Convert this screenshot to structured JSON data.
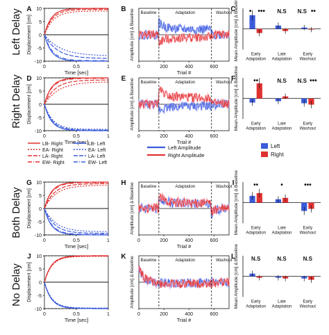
{
  "figure": {
    "rows": [
      {
        "row_label": "Left Delay"
      },
      {
        "row_label": "Right Delay"
      },
      {
        "row_label": "Both Delay"
      },
      {
        "row_label": "No Delay"
      }
    ],
    "legend": {
      "displacement_entries": [
        "LB- Right",
        "EA- Right",
        "LA- Right",
        "EW- Right",
        "LB- Left",
        "EA- Left",
        "LA- Left",
        "EW- Left"
      ],
      "amplitude_entries": [
        "Left Amplitude",
        "Right Amplitude"
      ],
      "bar_entries": [
        "Left",
        "Right"
      ]
    },
    "colors": {
      "left": "#3b5bdb",
      "right": "#e03131",
      "left_light": "#aab4ff",
      "right_light": "#ffa8b4",
      "black": "#111111"
    }
  },
  "chart_data": [
    {
      "panel": "A",
      "type": "line",
      "xlabel": "Time [sec]",
      "ylabel": "Displacement [cm]",
      "xlim": [
        0,
        1
      ],
      "ylim": [
        -10,
        10
      ],
      "xticks": [
        "0",
        "0.5",
        "1"
      ],
      "yticks": [
        "10",
        "5",
        "0",
        "-5",
        "-10"
      ],
      "series": [
        {
          "name": "LB- Right",
          "final": 10,
          "rate": 9
        },
        {
          "name": "EA- Right",
          "final": 9,
          "rate": 7
        },
        {
          "name": "LA- Right",
          "final": 9.6,
          "rate": 8
        },
        {
          "name": "EW- Right",
          "final": 9.9,
          "rate": 9.5
        },
        {
          "name": "LB- Left",
          "final": -10,
          "rate": 9
        },
        {
          "name": "EA- Left",
          "final": -8,
          "rate": 4
        },
        {
          "name": "LA- Left",
          "final": -9,
          "rate": 5
        },
        {
          "name": "EW- Left",
          "final": -9.8,
          "rate": 8
        }
      ]
    },
    {
      "panel": "B",
      "type": "line",
      "xlabel": "Trial #",
      "ylabel": "Amplitude [cm] Δ Baseline",
      "xlim": [
        0,
        720
      ],
      "ylim": [
        -4,
        4
      ],
      "xticks": [
        "0",
        "200",
        "400",
        "600"
      ],
      "phases": [
        "Baseline",
        "Adaptation",
        "Washout"
      ],
      "phase_bounds": [
        160,
        580
      ],
      "series": [
        {
          "name": "Left Amplitude",
          "baseline": 0,
          "adapt_start": 1.8,
          "adapt_end": 0.8,
          "washout_start": 0
        },
        {
          "name": "Right Amplitude",
          "baseline": 0,
          "adapt_start": -1.2,
          "adapt_end": -0.4,
          "washout_start": 0
        }
      ]
    },
    {
      "panel": "C",
      "type": "bar",
      "ylabel": "Mean Amplitude [cm] Δ Baseline",
      "categories": [
        "Early Adaptation",
        "Late Adaptation",
        "Early Washout"
      ],
      "ylim": [
        -3,
        3
      ],
      "series": [
        {
          "name": "Left",
          "values": [
            2.0,
            0.5,
            0.2
          ]
        },
        {
          "name": "Right",
          "values": [
            -0.6,
            -0.3,
            -0.1
          ]
        }
      ],
      "annotations": [
        {
          "group": 0,
          "text": "•"
        },
        {
          "group": 0,
          "text": "•••"
        },
        {
          "group": 1,
          "text": "N.S"
        },
        {
          "group": 2,
          "text": "N.S"
        },
        {
          "group": 2,
          "text": "••"
        }
      ]
    },
    {
      "panel": "D",
      "type": "line",
      "xlabel": "Time [sec]",
      "ylabel": "Displacement [cm]",
      "xlim": [
        0,
        1
      ],
      "ylim": [
        -10,
        10
      ],
      "xticks": [
        "0",
        "0.5",
        "1"
      ],
      "yticks": [
        "10",
        "5",
        "0",
        "-5",
        "-10"
      ],
      "series": [
        {
          "name": "LB- Right",
          "final": 10,
          "rate": 9
        },
        {
          "name": "EA- Right",
          "final": 8.5,
          "rate": 4.5
        },
        {
          "name": "LA- Right",
          "final": 9.2,
          "rate": 6
        },
        {
          "name": "EW- Right",
          "final": 9.8,
          "rate": 8.5
        },
        {
          "name": "LB- Left",
          "final": -10,
          "rate": 9
        },
        {
          "name": "EA- Left",
          "final": -9.5,
          "rate": 7.5
        },
        {
          "name": "LA- Left",
          "final": -9.8,
          "rate": 8
        },
        {
          "name": "EW- Left",
          "final": -10,
          "rate": 9
        }
      ]
    },
    {
      "panel": "E",
      "type": "line",
      "xlabel": "Trial #",
      "ylabel": "Amplitude [cm] Δ Baseline",
      "xlim": [
        0,
        720
      ],
      "ylim": [
        -4,
        4
      ],
      "xticks": [
        "0",
        "200",
        "400",
        "600"
      ],
      "phases": [
        "Baseline",
        "Adaptation",
        "Washout"
      ],
      "phase_bounds": [
        160,
        580
      ],
      "series": [
        {
          "name": "Left Amplitude",
          "baseline": 0,
          "adapt_start": -0.8,
          "adapt_end": -0.3,
          "washout_start": 0
        },
        {
          "name": "Right Amplitude",
          "baseline": 0,
          "adapt_start": 2.5,
          "adapt_end": 1.0,
          "washout_start": 0.2
        }
      ]
    },
    {
      "panel": "F",
      "type": "bar",
      "ylabel": "Mean Amplitude [cm] Δ Baseline",
      "categories": [
        "Early Adaptation",
        "Late Adaptation",
        "Early Washout"
      ],
      "ylim": [
        -3,
        3
      ],
      "series": [
        {
          "name": "Left",
          "values": [
            -0.6,
            -0.4,
            -0.7
          ]
        },
        {
          "name": "Right",
          "values": [
            2.2,
            0.3,
            -0.9
          ]
        }
      ],
      "annotations": [
        {
          "group": 0,
          "text": "••"
        },
        {
          "group": 1,
          "text": "N.S"
        },
        {
          "group": 2,
          "text": "N.S"
        },
        {
          "group": 2,
          "text": "•••"
        }
      ]
    },
    {
      "panel": "G",
      "type": "line",
      "xlabel": "Time [sec]",
      "ylabel": "Displacement [cm]",
      "xlim": [
        0,
        1
      ],
      "ylim": [
        -10,
        10
      ],
      "xticks": [
        "0",
        "0.5",
        "1"
      ],
      "yticks": [
        "10",
        "5",
        "0",
        "-5",
        "-10"
      ],
      "series": [
        {
          "name": "LB- Right",
          "final": 10,
          "rate": 9
        },
        {
          "name": "EA- Right",
          "final": 8.8,
          "rate": 5.5
        },
        {
          "name": "LA- Right",
          "final": 9.4,
          "rate": 6.5
        },
        {
          "name": "EW- Right",
          "final": 9.8,
          "rate": 8.5
        },
        {
          "name": "LB- Left",
          "final": -10,
          "rate": 9
        },
        {
          "name": "EA- Left",
          "final": -8.8,
          "rate": 5.5
        },
        {
          "name": "LA- Left",
          "final": -9.4,
          "rate": 6.5
        },
        {
          "name": "EW- Left",
          "final": -9.8,
          "rate": 8.5
        }
      ]
    },
    {
      "panel": "H",
      "type": "line",
      "xlabel": "Trial #",
      "ylabel": "Amplitude [cm] Δ Baseline",
      "xlim": [
        0,
        720
      ],
      "ylim": [
        -4,
        4
      ],
      "xticks": [
        "0",
        "200",
        "400",
        "600"
      ],
      "phases": [
        "Baseline",
        "Adaptation",
        "Washout"
      ],
      "phase_bounds": [
        160,
        580
      ],
      "series": [
        {
          "name": "Left Amplitude",
          "baseline": 0,
          "adapt_start": 1.6,
          "adapt_end": 0.7,
          "washout_start": -0.8
        },
        {
          "name": "Right Amplitude",
          "baseline": 0,
          "adapt_start": 1.8,
          "adapt_end": 0.8,
          "washout_start": -0.6
        }
      ]
    },
    {
      "panel": "I",
      "type": "bar",
      "ylabel": "Mean Amplitude [cm] Δ Baseline",
      "categories": [
        "Early Adaptation",
        "Late Adaptation",
        "Early Washout"
      ],
      "ylim": [
        -3,
        3
      ],
      "series": [
        {
          "name": "Left",
          "values": [
            1.0,
            0.5,
            -1.2
          ]
        },
        {
          "name": "Right",
          "values": [
            1.4,
            0.7,
            -0.9
          ]
        }
      ],
      "annotations": [
        {
          "group": 0,
          "text": "••"
        },
        {
          "group": 1,
          "text": "•"
        },
        {
          "group": 2,
          "text": "•••"
        }
      ]
    },
    {
      "panel": "J",
      "type": "line",
      "xlabel": "Time [sec]",
      "ylabel": "Displacement [cm]",
      "xlim": [
        0,
        1
      ],
      "ylim": [
        -10,
        10
      ],
      "xticks": [
        "0",
        "0.5",
        "1"
      ],
      "yticks": [
        "10",
        "5",
        "0",
        "-5",
        "-10"
      ],
      "series": [
        {
          "name": "LB- Right",
          "final": 10,
          "rate": 9
        },
        {
          "name": "EA- Right",
          "final": 9.8,
          "rate": 8.5
        },
        {
          "name": "LA- Right",
          "final": 9.9,
          "rate": 8.8
        },
        {
          "name": "EW- Right",
          "final": 10,
          "rate": 9
        },
        {
          "name": "LB- Left",
          "final": -10,
          "rate": 9
        },
        {
          "name": "EA- Left",
          "final": -9.8,
          "rate": 8.5
        },
        {
          "name": "LA- Left",
          "final": -9.9,
          "rate": 8.8
        },
        {
          "name": "EW- Left",
          "final": -10,
          "rate": 9
        }
      ]
    },
    {
      "panel": "K",
      "type": "line",
      "xlabel": "Trial #",
      "ylabel": "Amplitude [cm] Δ Baseline",
      "xlim": [
        0,
        720
      ],
      "ylim": [
        -4,
        4
      ],
      "xticks": [
        "0",
        "200",
        "400",
        "600"
      ],
      "phases": [
        "Baseline",
        "Adaptation",
        "Washout"
      ],
      "phase_bounds": [
        160,
        580
      ],
      "series": [
        {
          "name": "Left Amplitude",
          "baseline": 2.0,
          "adapt_start": -0.2,
          "adapt_end": -0.1,
          "washout_start": -0.1
        },
        {
          "name": "Right Amplitude",
          "baseline": 2.2,
          "adapt_start": -0.3,
          "adapt_end": -0.2,
          "washout_start": -0.2
        }
      ]
    },
    {
      "panel": "L",
      "type": "bar",
      "ylabel": "Mean Amplitude [cm] Δ Baseline",
      "categories": [
        "Early Adaptation",
        "Late Adaptation",
        "Early Washout"
      ],
      "ylim": [
        -3,
        3
      ],
      "series": [
        {
          "name": "Left",
          "values": [
            0.4,
            -0.2,
            -0.3
          ]
        },
        {
          "name": "Right",
          "values": [
            -0.2,
            -0.3,
            -0.5
          ]
        }
      ],
      "annotations": [
        {
          "group": 0,
          "text": "N.S"
        },
        {
          "group": 1,
          "text": "N.S"
        },
        {
          "group": 2,
          "text": "N.S"
        }
      ]
    }
  ]
}
